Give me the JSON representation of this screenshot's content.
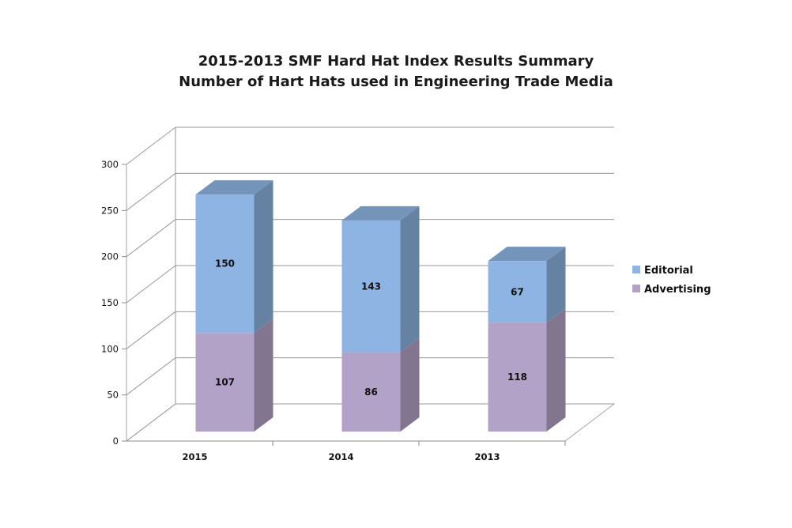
{
  "chart_data": {
    "type": "bar",
    "stacked": true,
    "three_d": true,
    "title_lines": [
      "2015-2013 SMF Hard Hat Index Results Summary",
      "Number of Hart Hats used in Engineering Trade Media"
    ],
    "categories": [
      "2015",
      "2014",
      "2013"
    ],
    "series": [
      {
        "name": "Advertising",
        "values": [
          107,
          86,
          118
        ],
        "color": "#b3a2c7"
      },
      {
        "name": "Editorial",
        "values": [
          150,
          143,
          67
        ],
        "color": "#8eb4e3"
      }
    ],
    "ylim": [
      0,
      300
    ],
    "yticks": [
      "0",
      "50",
      "100",
      "150",
      "200",
      "250",
      "300"
    ],
    "grid": true,
    "legend_position": "right"
  }
}
